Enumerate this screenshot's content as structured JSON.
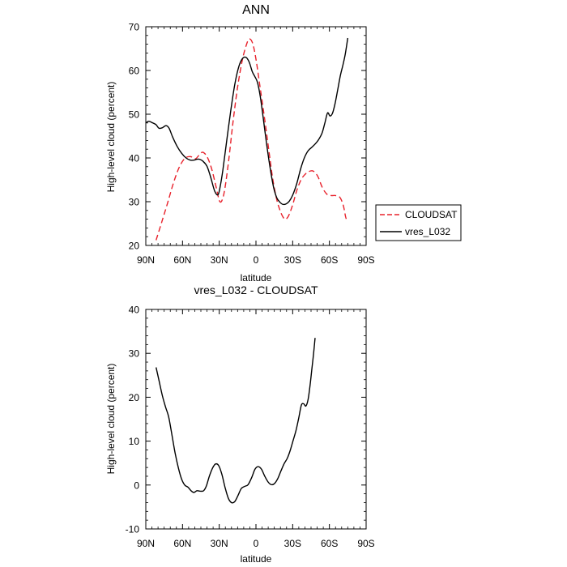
{
  "chart_data": [
    {
      "type": "line",
      "title": "ANN",
      "xlabel": "latitude",
      "ylabel": "High-level cloud (percent)",
      "xlim": [
        90,
        -90
      ],
      "ylim": [
        20,
        70
      ],
      "xticks": [
        90,
        60,
        30,
        0,
        -30,
        -60,
        -90
      ],
      "xtick_labels": [
        "90N",
        "60N",
        "30N",
        "0",
        "30S",
        "60S",
        "90S"
      ],
      "yticks": [
        20,
        30,
        40,
        50,
        60,
        70
      ],
      "ytick_labels": [
        "20",
        "30",
        "40",
        "50",
        "60",
        "70"
      ],
      "legend": [
        "CLOUDSAT",
        "vres_L032"
      ],
      "series": [
        {
          "name": "CLOUDSAT",
          "color": "#e8202a",
          "dash": "dashed",
          "points": [
            [
              81.6,
              21.2
            ],
            [
              76.9,
              25.4
            ],
            [
              72.2,
              29.7
            ],
            [
              67.5,
              34.2
            ],
            [
              62.8,
              37.8
            ],
            [
              58.1,
              39.9
            ],
            [
              53.4,
              40.3
            ],
            [
              49.5,
              39.8
            ],
            [
              46.0,
              40.8
            ],
            [
              43.5,
              41.3
            ],
            [
              40.0,
              40.3
            ],
            [
              36.3,
              37.6
            ],
            [
              32.5,
              33.3
            ],
            [
              29.7,
              30.1
            ],
            [
              27.3,
              30.6
            ],
            [
              25.0,
              33.7
            ],
            [
              22.0,
              40.1
            ],
            [
              18.8,
              48.1
            ],
            [
              15.0,
              56.2
            ],
            [
              11.2,
              62.3
            ],
            [
              8.0,
              65.7
            ],
            [
              5.5,
              67.2
            ],
            [
              2.7,
              66.2
            ],
            [
              0.0,
              62.6
            ],
            [
              -3.0,
              56.9
            ],
            [
              -6.7,
              49.7
            ],
            [
              -10.4,
              42.0
            ],
            [
              -13.6,
              35.4
            ],
            [
              -16.8,
              30.7
            ],
            [
              -19.8,
              27.9
            ],
            [
              -22.3,
              26.4
            ],
            [
              -24.2,
              26.0
            ],
            [
              -26.7,
              26.8
            ],
            [
              -30.0,
              29.3
            ],
            [
              -33.5,
              32.7
            ],
            [
              -37.0,
              35.1
            ],
            [
              -40.3,
              36.3
            ],
            [
              -43.2,
              36.9
            ],
            [
              -46.8,
              37.0
            ],
            [
              -50.5,
              35.8
            ],
            [
              -54.3,
              33.2
            ],
            [
              -58.0,
              31.7
            ],
            [
              -61.4,
              31.4
            ],
            [
              -65.0,
              31.4
            ],
            [
              -68.5,
              31.0
            ],
            [
              -71.3,
              29.2
            ],
            [
              -73.2,
              26.6
            ],
            [
              -74.3,
              25.7
            ]
          ]
        },
        {
          "name": "vres_L032",
          "color": "#000000",
          "dash": "solid",
          "points": [
            [
              90.0,
              48.0
            ],
            [
              87.6,
              48.4
            ],
            [
              84.3,
              48.0
            ],
            [
              81.6,
              47.6
            ],
            [
              79.3,
              46.8
            ],
            [
              76.5,
              46.9
            ],
            [
              73.5,
              47.4
            ],
            [
              71.0,
              46.8
            ],
            [
              68.1,
              44.8
            ],
            [
              64.5,
              42.7
            ],
            [
              60.8,
              41.1
            ],
            [
              57.1,
              40.0
            ],
            [
              53.7,
              39.5
            ],
            [
              50.6,
              39.5
            ],
            [
              48.2,
              39.7
            ],
            [
              46.1,
              39.7
            ],
            [
              43.5,
              39.3
            ],
            [
              40.0,
              38.1
            ],
            [
              37.0,
              35.6
            ],
            [
              33.7,
              32.4
            ],
            [
              31.0,
              31.6
            ],
            [
              29.2,
              33.5
            ],
            [
              27.0,
              37.3
            ],
            [
              24.0,
              43.7
            ],
            [
              20.6,
              50.8
            ],
            [
              17.3,
              56.8
            ],
            [
              14.1,
              60.8
            ],
            [
              11.1,
              62.7
            ],
            [
              8.2,
              63.0
            ],
            [
              5.5,
              61.9
            ],
            [
              3.1,
              59.8
            ],
            [
              0.9,
              58.6
            ],
            [
              -1.2,
              57.3
            ],
            [
              -3.5,
              54.1
            ],
            [
              -6.0,
              49.0
            ],
            [
              -8.8,
              43.0
            ],
            [
              -11.7,
              37.5
            ],
            [
              -14.4,
              33.3
            ],
            [
              -17.0,
              30.9
            ],
            [
              -19.5,
              29.9
            ],
            [
              -21.9,
              29.4
            ],
            [
              -24.6,
              29.5
            ],
            [
              -27.2,
              30.1
            ],
            [
              -30.0,
              31.5
            ],
            [
              -33.3,
              34.1
            ],
            [
              -36.5,
              37.5
            ],
            [
              -39.5,
              40.0
            ],
            [
              -42.5,
              41.6
            ],
            [
              -45.5,
              42.4
            ],
            [
              -48.4,
              43.2
            ],
            [
              -51.2,
              44.2
            ],
            [
              -54.0,
              45.7
            ],
            [
              -56.3,
              48.0
            ],
            [
              -58.5,
              50.3
            ],
            [
              -60.5,
              49.6
            ],
            [
              -62.5,
              50.2
            ],
            [
              -64.6,
              52.4
            ],
            [
              -66.8,
              55.6
            ],
            [
              -69.0,
              58.9
            ],
            [
              -71.1,
              61.3
            ],
            [
              -73.0,
              63.8
            ],
            [
              -75.0,
              67.4
            ]
          ]
        }
      ]
    },
    {
      "type": "line",
      "title": "vres_L032 - CLOUDSAT",
      "xlabel": "latitude",
      "ylabel": "High-level cloud (percent)",
      "xlim": [
        90,
        -90
      ],
      "ylim": [
        -10,
        40
      ],
      "xticks": [
        90,
        60,
        30,
        0,
        -30,
        -60,
        -90
      ],
      "xtick_labels": [
        "90N",
        "60N",
        "30N",
        "0",
        "30S",
        "60S",
        "90S"
      ],
      "yticks": [
        -10,
        0,
        10,
        20,
        30,
        40
      ],
      "ytick_labels": [
        "-10",
        "0",
        "10",
        "20",
        "30",
        "40"
      ],
      "series": [
        {
          "name": "vres_L032 - CLOUDSAT",
          "color": "#000000",
          "dash": "solid",
          "points": [
            [
              81.6,
              26.8
            ],
            [
              79.2,
              23.8
            ],
            [
              76.5,
              20.4
            ],
            [
              73.9,
              17.8
            ],
            [
              71.3,
              15.5
            ],
            [
              68.7,
              11.5
            ],
            [
              66.0,
              7.2
            ],
            [
              63.3,
              3.8
            ],
            [
              60.8,
              1.4
            ],
            [
              58.2,
              0.0
            ],
            [
              55.5,
              -0.5
            ],
            [
              53.0,
              -1.3
            ],
            [
              50.7,
              -1.7
            ],
            [
              48.2,
              -1.3
            ],
            [
              45.5,
              -1.4
            ],
            [
              42.8,
              -1.3
            ],
            [
              40.5,
              -0.2
            ],
            [
              38.1,
              2.0
            ],
            [
              35.4,
              3.9
            ],
            [
              33.0,
              4.8
            ],
            [
              30.4,
              4.4
            ],
            [
              27.8,
              2.4
            ],
            [
              25.3,
              -0.5
            ],
            [
              22.6,
              -3.0
            ],
            [
              20.0,
              -4.0
            ],
            [
              17.4,
              -3.8
            ],
            [
              14.7,
              -2.4
            ],
            [
              12.0,
              -0.8
            ],
            [
              9.1,
              -0.3
            ],
            [
              6.4,
              0.1
            ],
            [
              3.5,
              1.7
            ],
            [
              0.8,
              3.6
            ],
            [
              -1.8,
              4.2
            ],
            [
              -4.5,
              3.6
            ],
            [
              -7.2,
              2.0
            ],
            [
              -9.9,
              0.7
            ],
            [
              -12.4,
              0.1
            ],
            [
              -15.0,
              0.3
            ],
            [
              -17.7,
              1.4
            ],
            [
              -20.4,
              3.2
            ],
            [
              -23.1,
              4.9
            ],
            [
              -25.6,
              6.1
            ],
            [
              -28.0,
              7.9
            ],
            [
              -30.4,
              10.2
            ],
            [
              -32.7,
              12.4
            ],
            [
              -34.9,
              15.2
            ],
            [
              -37.1,
              18.2
            ],
            [
              -39.0,
              18.5
            ],
            [
              -40.8,
              18.0
            ],
            [
              -42.6,
              19.5
            ],
            [
              -44.2,
              22.7
            ],
            [
              -45.7,
              26.5
            ],
            [
              -47.1,
              30.0
            ],
            [
              -48.3,
              33.5
            ]
          ]
        }
      ]
    }
  ]
}
